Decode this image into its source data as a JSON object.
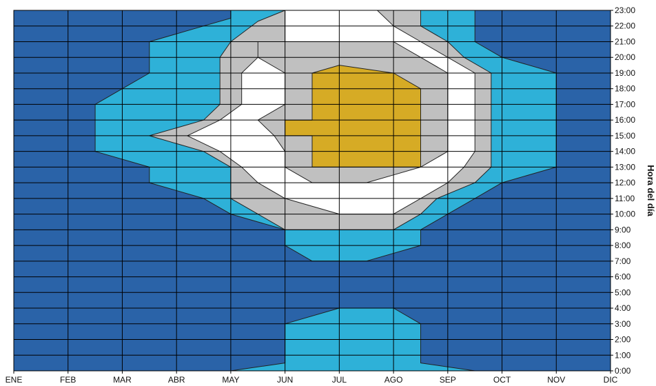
{
  "chart_data": {
    "type": "area",
    "chart_style": "filled contour of hourly level by month",
    "xlabel": "",
    "ylabel": "Hora del día",
    "x_ticks": [
      "ENE",
      "FEB",
      "MAR",
      "ABR",
      "MAY",
      "JUN",
      "JUL",
      "AGO",
      "SEP",
      "OCT",
      "NOV",
      "DIC"
    ],
    "y_ticks": [
      "0:00",
      "1:00",
      "2:00",
      "3:00",
      "4:00",
      "5:00",
      "6:00",
      "7:00",
      "8:00",
      "9:00",
      "10:00",
      "11:00",
      "12:00",
      "13:00",
      "14:00",
      "15:00",
      "16:00",
      "17:00",
      "18:00",
      "19:00",
      "20:00",
      "21:00",
      "22:00",
      "23:00"
    ],
    "xlim": [
      0,
      11
    ],
    "ylim": [
      0,
      23
    ],
    "grid": true,
    "y_axis_side": "right",
    "band_colors": [
      "#2a63a8",
      "#2eb1d8",
      "#c0c0c0",
      "#ffffff",
      "#d6ab25"
    ],
    "contours": [
      {
        "level": 1,
        "color": "#2eb1d8",
        "points": [
          [
            3.0,
            23.0
          ],
          [
            4.0,
            23.0
          ],
          [
            4.0,
            22.5
          ],
          [
            3.5,
            22.0
          ],
          [
            2.5,
            21.0
          ],
          [
            2.5,
            19.0
          ],
          [
            1.5,
            17.0
          ],
          [
            1.5,
            15.0
          ],
          [
            1.5,
            14.0
          ],
          [
            2.5,
            13.0
          ],
          [
            2.5,
            12.0
          ],
          [
            3.5,
            11.0
          ],
          [
            4.0,
            10.0
          ],
          [
            5.0,
            9.0
          ],
          [
            5.0,
            8.0
          ],
          [
            5.5,
            7.0
          ],
          [
            6.5,
            7.0
          ],
          [
            7.5,
            8.0
          ],
          [
            7.5,
            9.0
          ],
          [
            8.0,
            10.0
          ],
          [
            8.5,
            11.0
          ],
          [
            9.0,
            12.0
          ],
          [
            10.0,
            13.0
          ],
          [
            10.0,
            19.0
          ],
          [
            9.0,
            20.0
          ],
          [
            8.5,
            21.0
          ],
          [
            8.5,
            23.0
          ],
          [
            9.0,
            23.0
          ]
        ]
      },
      {
        "level": 1,
        "color": "#2eb1d8",
        "points": [
          [
            4.0,
            0.0
          ],
          [
            5.0,
            0.5
          ],
          [
            5.0,
            3.0
          ],
          [
            6.0,
            4.0
          ],
          [
            7.0,
            4.0
          ],
          [
            7.5,
            3.0
          ],
          [
            7.5,
            0.5
          ],
          [
            8.5,
            0.0
          ]
        ]
      },
      {
        "level": 2,
        "color": "#c0c0c0",
        "points": [
          [
            5.0,
            23.0
          ],
          [
            4.5,
            22.3
          ],
          [
            4.0,
            21.0
          ],
          [
            3.8,
            20.0
          ],
          [
            3.8,
            19.0
          ],
          [
            3.8,
            17.0
          ],
          [
            3.5,
            16.0
          ],
          [
            2.5,
            15.0
          ],
          [
            3.5,
            14.0
          ],
          [
            4.0,
            13.0
          ],
          [
            4.0,
            12.0
          ],
          [
            4.0,
            11.0
          ],
          [
            4.5,
            10.0
          ],
          [
            5.0,
            9.0
          ],
          [
            6.0,
            9.0
          ],
          [
            7.0,
            9.0
          ],
          [
            7.5,
            10.0
          ],
          [
            7.8,
            11.0
          ],
          [
            8.5,
            12.0
          ],
          [
            8.8,
            13.0
          ],
          [
            8.8,
            19.0
          ],
          [
            8.3,
            20.0
          ],
          [
            8.0,
            21.0
          ],
          [
            7.5,
            22.0
          ],
          [
            7.5,
            23.0
          ]
        ]
      },
      {
        "level": 3,
        "color": "#ffffff",
        "points": [
          [
            5.0,
            23.0
          ],
          [
            5.0,
            22.0
          ],
          [
            5.0,
            21.0
          ],
          [
            4.5,
            20.0
          ],
          [
            4.2,
            19.0
          ],
          [
            4.2,
            18.0
          ],
          [
            4.2,
            17.0
          ],
          [
            3.8,
            16.0
          ],
          [
            3.2,
            15.0
          ],
          [
            3.8,
            14.0
          ],
          [
            4.2,
            13.0
          ],
          [
            4.5,
            12.0
          ],
          [
            5.0,
            11.0
          ],
          [
            6.0,
            10.0
          ],
          [
            7.0,
            10.0
          ],
          [
            7.5,
            11.0
          ],
          [
            8.0,
            12.0
          ],
          [
            8.3,
            13.0
          ],
          [
            8.5,
            14.0
          ],
          [
            8.5,
            19.0
          ],
          [
            8.0,
            20.0
          ],
          [
            7.5,
            21.0
          ],
          [
            7.0,
            22.0
          ],
          [
            6.7,
            23.0
          ]
        ]
      },
      {
        "level": 4,
        "color": "#c0c0c0",
        "points": [
          [
            4.5,
            21.0
          ],
          [
            4.5,
            20.0
          ],
          [
            5.0,
            19.0
          ],
          [
            5.0,
            17.0
          ],
          [
            4.5,
            16.0
          ],
          [
            4.8,
            15.0
          ],
          [
            5.0,
            14.0
          ],
          [
            5.0,
            13.0
          ],
          [
            5.5,
            12.0
          ],
          [
            6.5,
            12.0
          ],
          [
            7.0,
            12.5
          ],
          [
            7.5,
            13.0
          ],
          [
            8.0,
            14.0
          ],
          [
            8.0,
            19.0
          ],
          [
            7.5,
            20.0
          ],
          [
            7.0,
            21.0
          ],
          [
            6.5,
            21.0
          ],
          [
            5.5,
            21.0
          ]
        ]
      },
      {
        "level": 5,
        "color": "#d6ab25",
        "points": [
          [
            5.5,
            19.0
          ],
          [
            6.0,
            19.5
          ],
          [
            7.0,
            19.0
          ],
          [
            7.5,
            18.0
          ],
          [
            7.5,
            13.0
          ],
          [
            7.0,
            13.0
          ],
          [
            6.0,
            13.0
          ],
          [
            5.5,
            13.0
          ],
          [
            5.5,
            15.0
          ],
          [
            5.0,
            15.0
          ],
          [
            5.0,
            16.0
          ],
          [
            5.5,
            16.0
          ]
        ]
      }
    ]
  }
}
